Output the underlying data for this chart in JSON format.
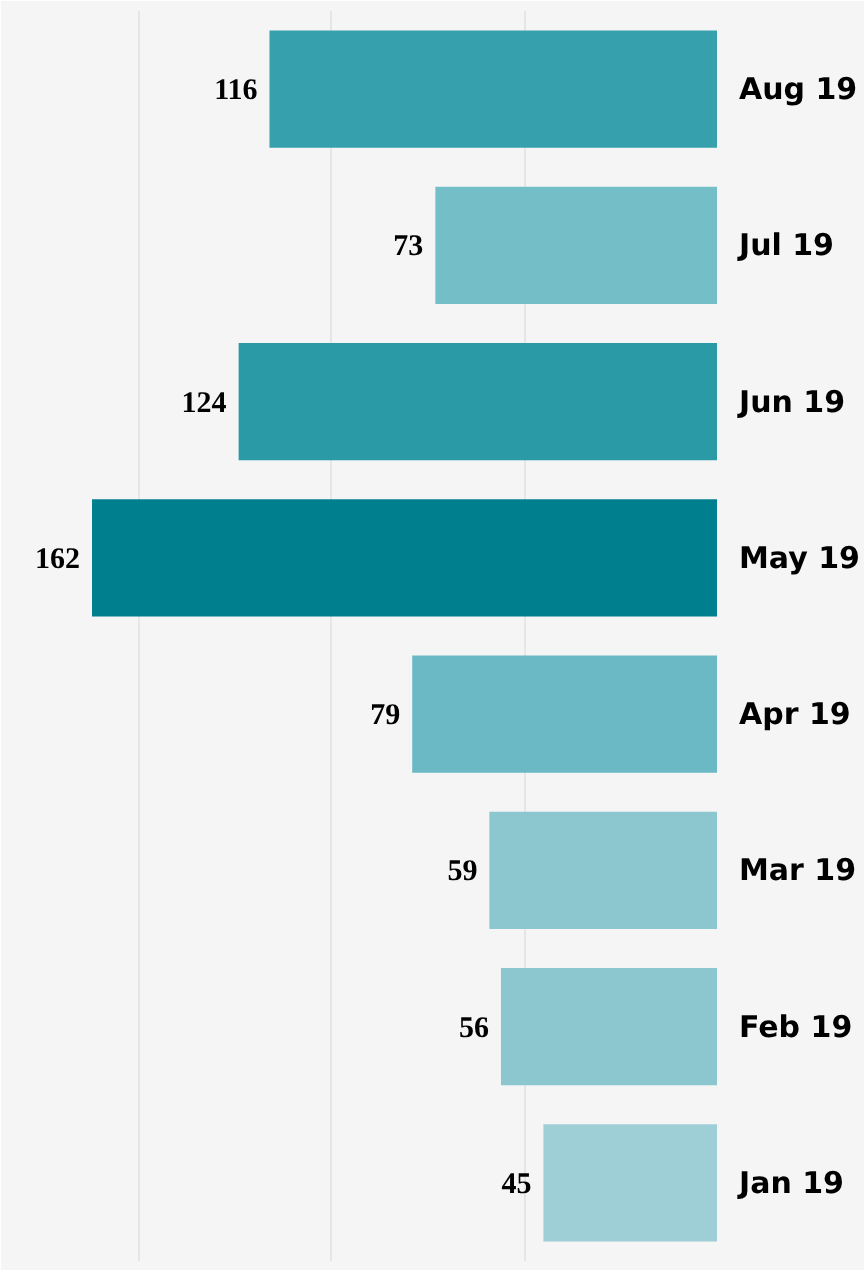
{
  "chart_data": {
    "type": "bar",
    "orientation": "horizontal",
    "categories": [
      "Aug 19",
      "Jul 19",
      "Jun 19",
      "May 19",
      "Apr 19",
      "Mar 19",
      "Feb 19",
      "Jan 19"
    ],
    "values": [
      116,
      73,
      124,
      162,
      79,
      59,
      56,
      45
    ],
    "colors": [
      "#36a0ac",
      "#73bec7",
      "#2a9aa7",
      "#007f8e",
      "#6bb9c4",
      "#8cc7cf",
      "#8cc7cf",
      "#9ecfd6"
    ],
    "xlim": [
      183,
      0
    ],
    "xticks": [
      {
        "value": 150,
        "label": null
      },
      {
        "value": 100,
        "label": null
      },
      {
        "value": 50,
        "label": null
      }
    ],
    "grid": "x",
    "tick_labels": "y",
    "data_labels": true
  }
}
